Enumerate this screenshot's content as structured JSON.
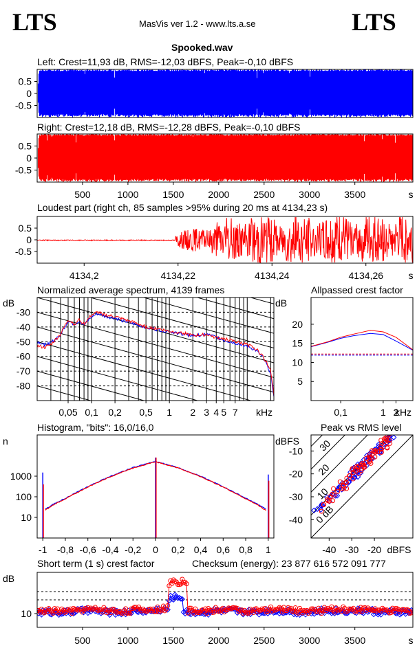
{
  "header": {
    "logo_left": "LTS",
    "logo_right": "LTS",
    "app_title": "MasVis ver 1.2 - www.lts.a.se",
    "file_name": "Spooked.wav"
  },
  "colors": {
    "left_channel": "#0000ff",
    "right_channel": "#ff0000",
    "axis": "#000000",
    "background": "#ffffff"
  },
  "panels": {
    "left_title": "Left: Crest=11,93 dB, RMS=-12,03 dBFS, Peak=-0,10 dBFS",
    "right_title": "Right: Crest=12,18 dB, RMS=-12,28 dBFS, Peak=-0,10 dBFS",
    "loudest_title": "Loudest part (right ch, 85 samples >95% during 20 ms at 4134,23 s)",
    "spectrum_title": "Normalized average spectrum, 4139 frames",
    "allpass_title": "Allpassed crest factor",
    "histogram_title": "Histogram, \"bits\": 16,0/16,0",
    "peakrms_title": "Peak vs RMS level",
    "crest_title": "Short term (1 s) crest factor",
    "checksum_text": "Checksum (energy):  23 877 616 572 091 777"
  },
  "chart_data": [
    {
      "id": "left_waveform",
      "type": "area",
      "title": "Left: Crest=11,93 dB, RMS=-12,03 dBFS, Peak=-0,10 dBFS",
      "ylim": [
        -1,
        1
      ],
      "yticks": [
        "0.5",
        "0",
        "-0.5"
      ],
      "ytick_values": [
        0.5,
        0,
        -0.5
      ],
      "xlim": [
        0,
        4139
      ],
      "color": "#0000ff"
    },
    {
      "id": "right_waveform",
      "type": "area",
      "title": "Right: Crest=12,18 dB, RMS=-12,28 dBFS, Peak=-0,10 dBFS",
      "ylim": [
        -1,
        1
      ],
      "yticks": [
        "0.5",
        "0",
        "-0.5"
      ],
      "ytick_values": [
        0.5,
        0,
        -0.5
      ],
      "xlim": [
        0,
        4139
      ],
      "color": "#ff0000",
      "xticks": [
        "500",
        "1000",
        "1500",
        "2000",
        "2500",
        "3000",
        "3500"
      ],
      "xtick_values": [
        500,
        1000,
        1500,
        2000,
        2500,
        3000,
        3500
      ],
      "xunit": "s"
    },
    {
      "id": "loudest_part",
      "type": "line",
      "title": "Loudest part (right ch, 85 samples >95% during 20 ms at 4134,23 s)",
      "ylim": [
        -1,
        1
      ],
      "yticks": [
        "0.5",
        "0",
        "-0.5"
      ],
      "ytick_values": [
        0.5,
        0,
        -0.5
      ],
      "xlim": [
        4134.19,
        4134.27
      ],
      "xticks": [
        "4134,2",
        "4134,22",
        "4134,24",
        "4134,26"
      ],
      "xtick_values": [
        4134.2,
        4134.22,
        4134.24,
        4134.26
      ],
      "xunit": "s",
      "color": "#ff0000"
    },
    {
      "id": "spectrum",
      "type": "line",
      "title": "Normalized average spectrum, 4139 frames",
      "ylabel": "dB",
      "ylim": [
        -90,
        -20
      ],
      "yticks": [
        "-30",
        "-40",
        "-50",
        "-60",
        "-70",
        "-80"
      ],
      "ytick_values": [
        -30,
        -40,
        -50,
        -60,
        -70,
        -80
      ],
      "x_scale": "log",
      "xlim": [
        0.02,
        22
      ],
      "xticks": [
        "0,05",
        "0,1",
        "0,2",
        "0,5",
        "1",
        "2",
        "3",
        "4",
        "5",
        "7"
      ],
      "xtick_values": [
        0.05,
        0.1,
        0.2,
        0.5,
        1,
        2,
        3,
        4,
        5,
        7
      ],
      "xunit": "kHz",
      "series": [
        {
          "channel": "left",
          "color": "#0000ff",
          "x": [
            0.02,
            0.025,
            0.03,
            0.04,
            0.05,
            0.06,
            0.07,
            0.08,
            0.1,
            0.12,
            0.15,
            0.2,
            0.3,
            0.4,
            0.5,
            0.7,
            1,
            1.5,
            2,
            3,
            4,
            5,
            7,
            10,
            13,
            16,
            20,
            22
          ],
          "y": [
            -50,
            -52,
            -51,
            -45,
            -36,
            -38,
            -36,
            -39,
            -33,
            -31,
            -33,
            -34,
            -37,
            -39,
            -40,
            -42,
            -43,
            -45,
            -46,
            -45,
            -47,
            -49,
            -51,
            -53,
            -56,
            -61,
            -71,
            -87
          ]
        },
        {
          "channel": "right",
          "color": "#ff0000",
          "x": [
            0.02,
            0.025,
            0.03,
            0.04,
            0.05,
            0.06,
            0.07,
            0.08,
            0.1,
            0.12,
            0.15,
            0.2,
            0.3,
            0.4,
            0.5,
            0.7,
            1,
            1.5,
            2,
            3,
            4,
            5,
            7,
            10,
            13,
            16,
            20,
            22
          ],
          "y": [
            -53,
            -54,
            -52,
            -45,
            -35,
            -38,
            -35,
            -38,
            -32,
            -30,
            -32,
            -33,
            -36,
            -38,
            -40,
            -41,
            -43,
            -44,
            -46,
            -45,
            -47,
            -48,
            -50,
            -52,
            -55,
            -60,
            -69,
            -86
          ]
        }
      ]
    },
    {
      "id": "allpass_crest",
      "type": "line",
      "title": "Allpassed crest factor",
      "ylabel": "dB",
      "ylim": [
        0,
        27
      ],
      "yticks": [
        "20",
        "15",
        "10",
        "5"
      ],
      "ytick_values": [
        20,
        15,
        10,
        5
      ],
      "x_scale": "log",
      "xlim": [
        0.02,
        5
      ],
      "xticks": [
        "0,1",
        "1",
        "2"
      ],
      "xtick_values": [
        0.1,
        1,
        2
      ],
      "xunit": "kHz",
      "series": [
        {
          "channel": "left",
          "color": "#0000ff",
          "x": [
            0.02,
            0.05,
            0.1,
            0.2,
            0.5,
            1,
            2,
            5
          ],
          "y": [
            14.1,
            15.3,
            16.3,
            17.0,
            17.6,
            17.3,
            15.6,
            13.2
          ]
        },
        {
          "channel": "right",
          "color": "#ff0000",
          "x": [
            0.02,
            0.05,
            0.1,
            0.2,
            0.5,
            1,
            2,
            5
          ],
          "y": [
            14.2,
            15.4,
            16.6,
            17.4,
            18.4,
            18.0,
            16.6,
            13.3
          ]
        },
        {
          "channel": "left-ref",
          "color": "#0000ff",
          "dashed": true,
          "x": [
            0.02,
            5
          ],
          "y": [
            11.9,
            11.9
          ]
        },
        {
          "channel": "right-ref",
          "color": "#ff0000",
          "dashed": true,
          "x": [
            0.02,
            5
          ],
          "y": [
            12.2,
            12.2
          ]
        }
      ]
    },
    {
      "id": "histogram",
      "type": "line",
      "title": "Histogram, \"bits\": 16,0/16,0",
      "ylabel": "n",
      "y_scale": "log",
      "ylim": [
        1,
        100000
      ],
      "yticks": [
        "1000",
        "100",
        "10"
      ],
      "ytick_values": [
        1000,
        100,
        10
      ],
      "xlim": [
        -1.05,
        1.05
      ],
      "xticks": [
        "-1",
        "-0,8",
        "-0,6",
        "-0,4",
        "-0,2",
        "0",
        "0,2",
        "0,4",
        "0,6",
        "0,8",
        "1"
      ],
      "xtick_values": [
        -1,
        -0.8,
        -0.6,
        -0.4,
        -0.2,
        0,
        0.2,
        0.4,
        0.6,
        0.8,
        1
      ],
      "series": [
        {
          "channel": "left",
          "color": "#0000ff",
          "x": [
            -0.98,
            -0.9,
            -0.8,
            -0.6,
            -0.4,
            -0.2,
            0,
            0.2,
            0.4,
            0.6,
            0.8,
            0.9,
            0.98
          ],
          "y": [
            25,
            45,
            85,
            310,
            1000,
            2600,
            5200,
            2600,
            1000,
            310,
            85,
            45,
            25
          ]
        },
        {
          "channel": "right",
          "color": "#ff0000",
          "x": [
            -0.98,
            -0.9,
            -0.8,
            -0.6,
            -0.4,
            -0.2,
            0,
            0.2,
            0.4,
            0.6,
            0.8,
            0.9,
            0.98
          ],
          "y": [
            22,
            42,
            80,
            300,
            950,
            2500,
            5100,
            2500,
            950,
            300,
            80,
            42,
            22
          ]
        }
      ],
      "spikes": [
        {
          "x": -1,
          "left": 1500,
          "right": 400
        },
        {
          "x": 0,
          "left": 8000,
          "right": 8000
        },
        {
          "x": 1,
          "left": 1200,
          "right": 600
        }
      ]
    },
    {
      "id": "peak_vs_rms",
      "type": "scatter",
      "title": "Peak vs RMS level",
      "ylabel": "dBFS",
      "ylim": [
        -48,
        -3
      ],
      "yticks": [
        "-10",
        "-20",
        "-30",
        "-40"
      ],
      "ytick_values": [
        -10,
        -20,
        -30,
        -40
      ],
      "xlabel": "dBFS",
      "xlim": [
        -48,
        -3
      ],
      "xticks": [
        "-40",
        "-30",
        "-20"
      ],
      "xtick_values": [
        -40,
        -30,
        -20
      ],
      "diagonal_labels": [
        "40",
        "30",
        "20",
        "10",
        "0 dB"
      ],
      "diagonal_values": [
        40,
        30,
        20,
        10,
        0
      ],
      "series": [
        {
          "channel": "left",
          "color": "#0000ff",
          "marker": "diamond",
          "x": [
            -45,
            -42,
            -40,
            -38,
            -36,
            -35,
            -33,
            -32,
            -30,
            -29,
            -28,
            -27,
            -26,
            -25,
            -24,
            -23,
            -22,
            -21,
            -20,
            -19,
            -18,
            -17,
            -16,
            -15,
            -14,
            -13,
            -12
          ],
          "y": [
            -36,
            -33,
            -31,
            -29,
            -27,
            -26,
            -24,
            -23,
            -21,
            -20,
            -19,
            -18,
            -17,
            -16,
            -15,
            -14,
            -13,
            -12,
            -11,
            -10,
            -9,
            -8,
            -7,
            -6,
            -5,
            -4,
            -3
          ]
        },
        {
          "channel": "right",
          "color": "#ff0000",
          "marker": "circle",
          "x": [
            -44,
            -41,
            -39,
            -37,
            -35,
            -34,
            -32,
            -31,
            -29,
            -28,
            -27,
            -26,
            -25,
            -24,
            -23,
            -22,
            -21,
            -20,
            -19,
            -18,
            -17,
            -16,
            -15,
            -14,
            -13
          ],
          "y": [
            -35,
            -32,
            -30,
            -28,
            -26,
            -25,
            -23,
            -22,
            -20,
            -19,
            -18,
            -17,
            -16,
            -15,
            -14,
            -13,
            -12,
            -11,
            -10,
            -9,
            -8,
            -7,
            -6,
            -5,
            -4
          ]
        }
      ]
    },
    {
      "id": "short_term_crest",
      "type": "scatter",
      "title": "Short term (1 s) crest factor",
      "ylabel": "dB",
      "ylim": [
        0,
        40
      ],
      "yticks": [
        "10"
      ],
      "ytick_values": [
        10
      ],
      "reference_lines": [
        20,
        26
      ],
      "xlim": [
        0,
        4139
      ],
      "xticks": [
        "500",
        "1000",
        "1500",
        "2000",
        "2500",
        "3000",
        "3500"
      ],
      "xtick_values": [
        500,
        1000,
        1500,
        2000,
        2500,
        3000,
        3500
      ],
      "xunit": "s",
      "series": [
        {
          "channel": "left",
          "color": "#0000ff",
          "marker": "diamond",
          "x": [
            100,
            400,
            700,
            1000,
            1300,
            1450,
            1600,
            1900,
            2200,
            2500,
            2800,
            3100,
            3400,
            3700,
            4000
          ],
          "y": [
            11,
            12,
            11,
            12,
            13,
            22,
            11,
            12,
            11,
            12,
            11,
            12,
            12,
            11,
            12
          ]
        },
        {
          "channel": "right",
          "color": "#ff0000",
          "marker": "circle",
          "x": [
            150,
            450,
            750,
            1050,
            1350,
            1460,
            1650,
            1950,
            2250,
            2550,
            2850,
            3150,
            3450,
            3750,
            4050
          ],
          "y": [
            12,
            13,
            12,
            13,
            14,
            33,
            12,
            13,
            12,
            13,
            12,
            13,
            13,
            12,
            13
          ]
        }
      ]
    }
  ]
}
